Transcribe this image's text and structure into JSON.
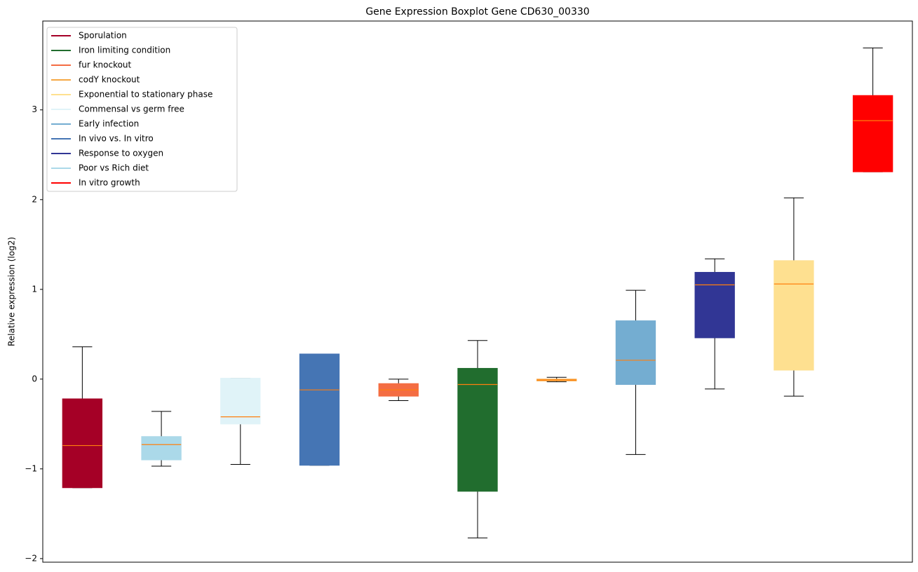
{
  "chart_data": {
    "type": "boxplot",
    "title": "Gene Expression Boxplot Gene CD630_00330",
    "y_label": "Relative expression (log2)",
    "ylim": [
      -2.04,
      3.99
    ],
    "yticks": [
      {
        "value": -2,
        "label": "−2"
      },
      {
        "value": -1,
        "label": "−1"
      },
      0,
      1,
      2,
      3
    ],
    "median_color": "#ff7f0e",
    "legend": "upper left",
    "categories": [
      null,
      null,
      null,
      null,
      null,
      null,
      null,
      null,
      null,
      null,
      null
    ],
    "series": [
      {
        "name": "Sporulation",
        "color": "#a50026",
        "values": [
          {
            "whislo": -1.21,
            "q1": -1.21,
            "med": -0.74,
            "q3": -0.22,
            "whishi": 0.36
          },
          null,
          null,
          null,
          null,
          null,
          null,
          null,
          null,
          null,
          null
        ]
      },
      {
        "name": "Iron limiting condition",
        "color": "#216d2e",
        "values": [
          null,
          null,
          null,
          null,
          null,
          {
            "whislo": -1.77,
            "q1": -1.25,
            "med": -0.06,
            "q3": 0.12,
            "whishi": 0.43
          },
          null,
          null,
          null,
          null,
          null
        ]
      },
      {
        "name": "fur knockout",
        "color": "#f46d43",
        "values": [
          null,
          null,
          null,
          null,
          {
            "whislo": -0.24,
            "q1": -0.19,
            "med": -0.12,
            "q3": -0.05,
            "whishi": 0.0
          },
          null,
          null,
          null,
          null,
          null,
          null
        ]
      },
      {
        "name": "codY knockout",
        "color": "#f6a844",
        "values": [
          null,
          null,
          null,
          null,
          null,
          null,
          {
            "whislo": -0.03,
            "q1": -0.02,
            "med": -0.01,
            "q3": 0.0,
            "whishi": 0.02
          },
          null,
          null,
          null,
          null
        ]
      },
      {
        "name": "Exponential to stationary phase",
        "color": "#fee090",
        "values": [
          null,
          null,
          null,
          null,
          null,
          null,
          null,
          null,
          null,
          {
            "whislo": -0.19,
            "q1": 0.1,
            "med": 1.06,
            "q3": 1.32,
            "whishi": 2.02
          },
          null
        ]
      },
      {
        "name": "Commensal vs germ free",
        "color": "#e0f3f8",
        "values": [
          null,
          null,
          {
            "whislo": -0.95,
            "q1": -0.5,
            "med": -0.42,
            "q3": 0.01,
            "whishi": 0.01
          },
          null,
          null,
          null,
          null,
          null,
          null,
          null,
          null
        ]
      },
      {
        "name": "Early infection",
        "color": "#74add1",
        "values": [
          null,
          null,
          null,
          null,
          null,
          null,
          null,
          {
            "whislo": -0.84,
            "q1": -0.06,
            "med": 0.21,
            "q3": 0.65,
            "whishi": 0.99
          },
          null,
          null,
          null
        ]
      },
      {
        "name": "In vivo vs. In vitro",
        "color": "#4575b4",
        "values": [
          null,
          null,
          null,
          {
            "whislo": -0.96,
            "q1": -0.96,
            "med": -0.12,
            "q3": 0.28,
            "whishi": 0.28
          },
          null,
          null,
          null,
          null,
          null,
          null,
          null
        ]
      },
      {
        "name": "Response to oxygen",
        "color": "#313695",
        "values": [
          null,
          null,
          null,
          null,
          null,
          null,
          null,
          null,
          {
            "whislo": -0.11,
            "q1": 0.46,
            "med": 1.05,
            "q3": 1.19,
            "whishi": 1.34
          },
          null,
          null
        ]
      },
      {
        "name": "Poor vs Rich diet",
        "color": "#abd9e9",
        "values": [
          null,
          {
            "whislo": -0.97,
            "q1": -0.9,
            "med": -0.73,
            "q3": -0.64,
            "whishi": -0.36
          },
          null,
          null,
          null,
          null,
          null,
          null,
          null,
          null,
          null
        ]
      },
      {
        "name": "In vitro growth",
        "color": "#ff0000",
        "values": [
          null,
          null,
          null,
          null,
          null,
          null,
          null,
          null,
          null,
          null,
          {
            "whislo": 2.31,
            "q1": 2.31,
            "med": 2.88,
            "q3": 3.16,
            "whishi": 3.69
          }
        ]
      }
    ]
  }
}
